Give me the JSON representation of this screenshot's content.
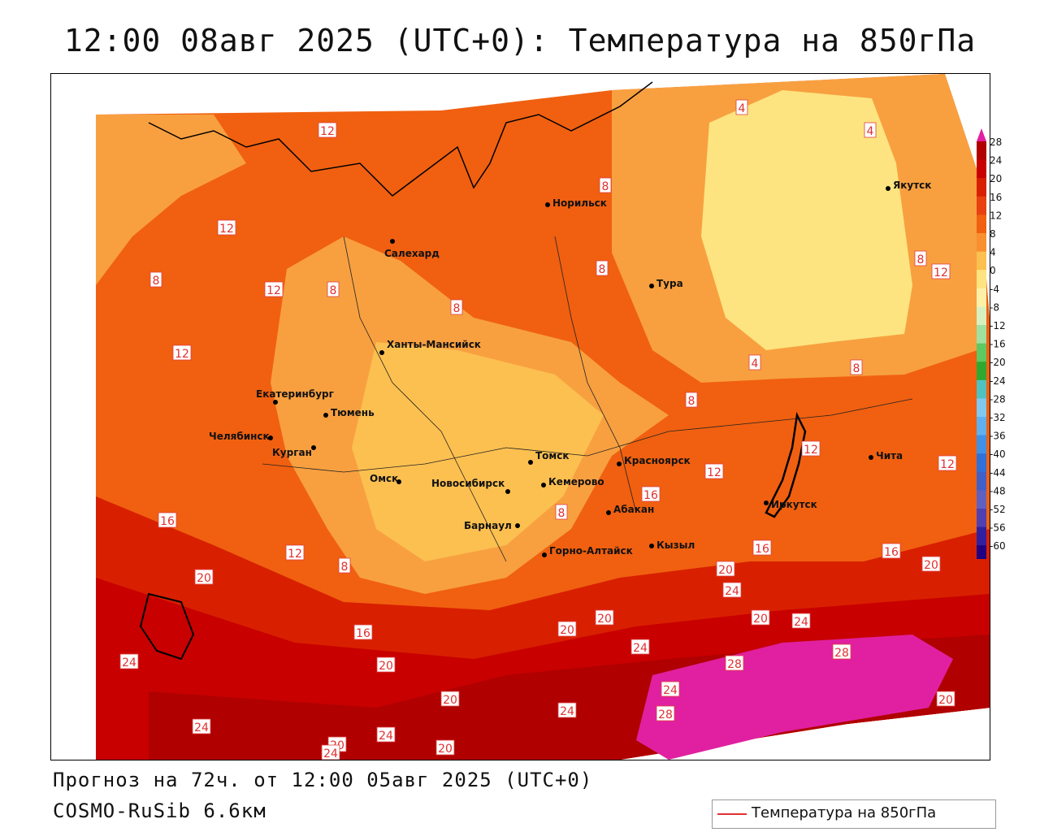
{
  "header": {
    "title": "12:00 08авг 2025 (UTC+0): Температура на 850гПа"
  },
  "footer": {
    "forecast": "Прогноз на 72ч. от 12:00 05авг 2025 (UTC+0)",
    "model": "COSMO-RuSib 6.6км"
  },
  "legend": {
    "label": "Температура на 850гПа",
    "line_color": "#e03030"
  },
  "colorbar": {
    "ticks": [
      "28",
      "24",
      "20",
      "16",
      "12",
      "8",
      "4",
      "0",
      "-4",
      "-8",
      "-12",
      "-16",
      "-20",
      "-24",
      "-28",
      "-32",
      "-36",
      "-40",
      "-44",
      "-48",
      "-52",
      "-56",
      "-60"
    ],
    "colors": [
      "#b00000",
      "#c80000",
      "#d82000",
      "#e84010",
      "#f06010",
      "#f89030",
      "#fcc050",
      "#fde480",
      "#fff0a8",
      "#d8f0c0",
      "#a0e0a0",
      "#60c860",
      "#30a830",
      "#50c0c0",
      "#80c8f0",
      "#60b0f0",
      "#4090e8",
      "#3070d8",
      "#4060c8",
      "#6060c0",
      "#5040b0",
      "#3020a0",
      "#200080"
    ],
    "top_color": "#e020a0",
    "bottom_color": "#8020c0"
  },
  "cities": [
    {
      "name": "Норильск"
    },
    {
      "name": "Якутск"
    },
    {
      "name": "Салехард"
    },
    {
      "name": "Тура"
    },
    {
      "name": "Ханты-Мансийск"
    },
    {
      "name": "Екатеринбург"
    },
    {
      "name": "Тюмень"
    },
    {
      "name": "Челябинск"
    },
    {
      "name": "Курган"
    },
    {
      "name": "Омск"
    },
    {
      "name": "Новосибирск"
    },
    {
      "name": "Томск"
    },
    {
      "name": "Кемерово"
    },
    {
      "name": "Красноярск"
    },
    {
      "name": "Абакан"
    },
    {
      "name": "Барнаул"
    },
    {
      "name": "Горно-Алтайск"
    },
    {
      "name": "Кызыл"
    },
    {
      "name": "Иркутск"
    },
    {
      "name": "Чита"
    }
  ],
  "isotherm_labels": [
    "12",
    "8",
    "4",
    "16",
    "20",
    "24",
    "28"
  ]
}
